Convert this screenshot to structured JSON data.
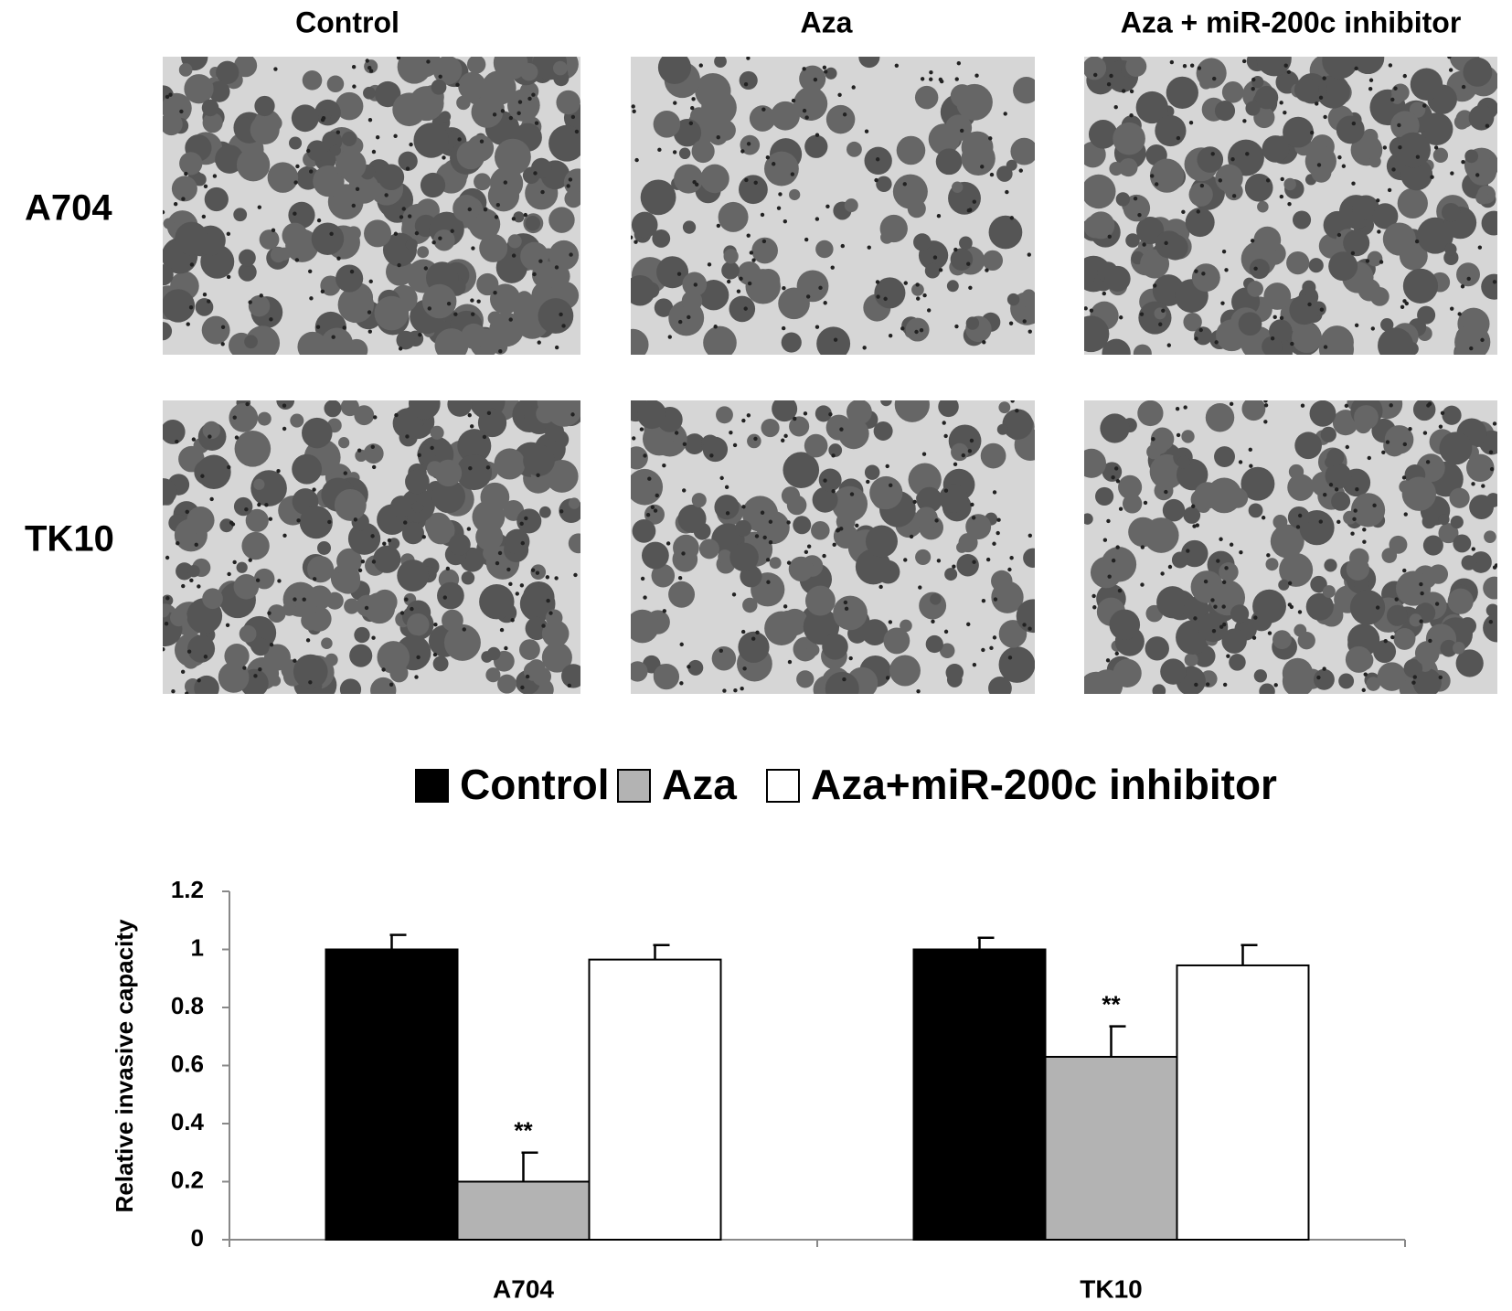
{
  "panels": {
    "columns": [
      "Control",
      "Aza",
      "Aza + miR-200c inhibitor"
    ],
    "rows": [
      "A704",
      "TK10"
    ]
  },
  "chart_data": {
    "type": "bar",
    "ylabel": "Relative invasive capacity",
    "categories": [
      "A704",
      "TK10"
    ],
    "series": [
      {
        "name": "Control",
        "color": "#000000",
        "values": [
          1,
          1
        ],
        "errors": [
          0.05,
          0.04
        ]
      },
      {
        "name": "Aza",
        "color": "#b3b3b3",
        "values": [
          0.2,
          0.63
        ],
        "errors": [
          0.1,
          0.105
        ],
        "annotations": [
          "**",
          "**"
        ]
      },
      {
        "name": "Aza+miR-200c inhibitor",
        "color": "#ffffff",
        "values": [
          0.965,
          0.945
        ],
        "errors": [
          0.05,
          0.07
        ]
      }
    ],
    "ylim": [
      0,
      1.2
    ],
    "yticks": [
      0,
      0.2,
      0.4,
      0.6,
      0.8,
      1,
      1.2
    ],
    "legend": "top"
  }
}
